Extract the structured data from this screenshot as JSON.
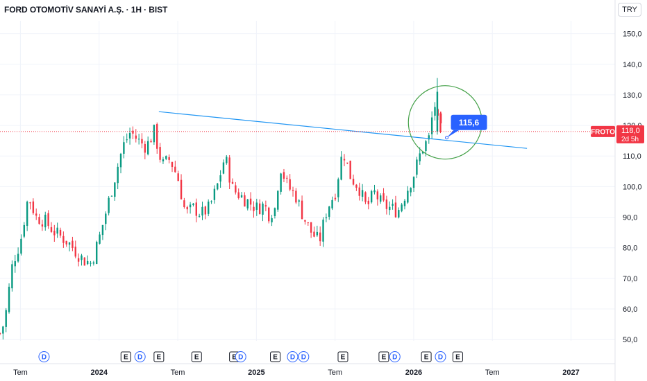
{
  "header": {
    "title": "FORD OTOMOTİV SANAYİ A.Ş. · 1H · BIST",
    "currency": "TRY"
  },
  "price_tag": {
    "symbol": "FROTO",
    "price": "118,0",
    "countdown": "2d 5h"
  },
  "annotation": {
    "callout_value": "115,6"
  },
  "colors": {
    "up": "#089981",
    "down": "#f23645",
    "trendline": "#2196f3",
    "circle": "#43a047",
    "callout": "#2962ff",
    "price_line": "#f23645",
    "event_earnings": "#131722",
    "event_dividend": "#2962ff"
  },
  "events": [
    {
      "type": "dividend",
      "label": "D",
      "date": 2023.65
    },
    {
      "type": "earnings",
      "label": "E",
      "date": 2024.17
    },
    {
      "type": "dividend",
      "label": "D",
      "date": 2024.26
    },
    {
      "type": "earnings",
      "label": "E",
      "date": 2024.38
    },
    {
      "type": "earnings",
      "label": "E",
      "date": 2024.62
    },
    {
      "type": "earnings",
      "label": "E",
      "date": 2024.86
    },
    {
      "type": "dividend",
      "label": "D",
      "date": 2024.9
    },
    {
      "type": "earnings",
      "label": "E",
      "date": 2025.12
    },
    {
      "type": "dividend",
      "label": "D",
      "date": 2025.23
    },
    {
      "type": "dividend",
      "label": "D",
      "date": 2025.3
    },
    {
      "type": "earnings",
      "label": "E",
      "date": 2025.55
    },
    {
      "type": "earnings",
      "label": "E",
      "date": 2025.81
    },
    {
      "type": "dividend",
      "label": "D",
      "date": 2025.88
    },
    {
      "type": "earnings",
      "label": "E",
      "date": 2026.08
    },
    {
      "type": "dividend",
      "label": "D",
      "date": 2026.17
    },
    {
      "type": "earnings",
      "label": "E",
      "date": 2026.28
    }
  ],
  "chart_data": {
    "type": "candlestick",
    "title": "FORD OTOMOTİV SANAYİ A.Ş. · 1H · BIST",
    "ylim": [
      48,
      157
    ],
    "xlim": [
      2023.37,
      2027.28
    ],
    "y_ticks": [
      "50,0",
      "60,0",
      "70,0",
      "80,0",
      "90,0",
      "100,0",
      "110,0",
      "120,0",
      "130,0",
      "140,0",
      "150,0"
    ],
    "y_tick_values": [
      50,
      60,
      70,
      80,
      90,
      100,
      110,
      120,
      130,
      140,
      150
    ],
    "x_ticks": [
      {
        "label": "Tem",
        "date": 2023.5,
        "bold": false
      },
      {
        "label": "2024",
        "date": 2024.0,
        "bold": true
      },
      {
        "label": "Tem",
        "date": 2024.5,
        "bold": false
      },
      {
        "label": "2025",
        "date": 2025.0,
        "bold": true
      },
      {
        "label": "Tem",
        "date": 2025.5,
        "bold": false
      },
      {
        "label": "2026",
        "date": 2026.0,
        "bold": true
      },
      {
        "label": "Tem",
        "date": 2026.5,
        "bold": false
      },
      {
        "label": "2027",
        "date": 2027.0,
        "bold": true
      }
    ],
    "last_price": 118.0,
    "trendline": {
      "start": [
        2024.38,
        124.5
      ],
      "end": [
        2026.72,
        112.5
      ]
    },
    "highlight_circle_center": [
      2026.2,
      121.0
    ],
    "callout_point": [
      2026.21,
      116
    ],
    "anchors": [
      [
        2023.37,
        52
      ],
      [
        2023.4,
        56
      ],
      [
        2023.45,
        75
      ],
      [
        2023.5,
        82
      ],
      [
        2023.55,
        97
      ],
      [
        2023.6,
        90
      ],
      [
        2023.65,
        89
      ],
      [
        2023.72,
        85
      ],
      [
        2023.8,
        82
      ],
      [
        2023.9,
        76
      ],
      [
        2023.95,
        75
      ],
      [
        2024.0,
        83
      ],
      [
        2024.05,
        93
      ],
      [
        2024.1,
        103
      ],
      [
        2024.15,
        113
      ],
      [
        2024.2,
        118
      ],
      [
        2024.25,
        115
      ],
      [
        2024.3,
        113
      ],
      [
        2024.35,
        118
      ],
      [
        2024.4,
        107
      ],
      [
        2024.45,
        109
      ],
      [
        2024.5,
        103
      ],
      [
        2024.55,
        91
      ],
      [
        2024.6,
        93
      ],
      [
        2024.65,
        91
      ],
      [
        2024.7,
        93
      ],
      [
        2024.75,
        100
      ],
      [
        2024.8,
        110
      ],
      [
        2024.85,
        99
      ],
      [
        2024.9,
        97
      ],
      [
        2024.95,
        95
      ],
      [
        2025.0,
        93
      ],
      [
        2025.05,
        94
      ],
      [
        2025.08,
        91
      ],
      [
        2025.12,
        93
      ],
      [
        2025.15,
        107
      ],
      [
        2025.2,
        100
      ],
      [
        2025.25,
        97
      ],
      [
        2025.3,
        90
      ],
      [
        2025.35,
        85
      ],
      [
        2025.4,
        82
      ],
      [
        2025.45,
        93
      ],
      [
        2025.5,
        98
      ],
      [
        2025.55,
        112
      ],
      [
        2025.6,
        103
      ],
      [
        2025.65,
        100
      ],
      [
        2025.7,
        93
      ],
      [
        2025.75,
        98
      ],
      [
        2025.8,
        94
      ],
      [
        2025.85,
        93
      ],
      [
        2025.9,
        92
      ],
      [
        2025.95,
        98
      ],
      [
        2026.0,
        104
      ],
      [
        2026.05,
        112
      ],
      [
        2026.1,
        116
      ],
      [
        2026.13,
        128
      ],
      [
        2026.16,
        119
      ],
      [
        2026.18,
        118
      ]
    ]
  }
}
